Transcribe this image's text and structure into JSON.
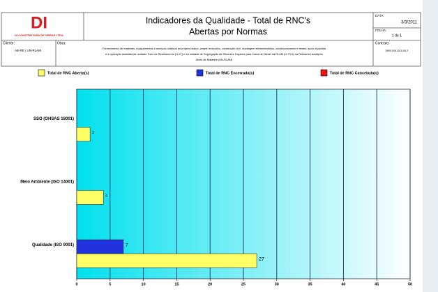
{
  "header": {
    "logo": "DI",
    "company": "DI CONSTRUTORA DE OBRAS LTDA",
    "title_lines": [
      "Indicadores da Qualidade - Total de RNC's",
      "Abertas por Normas"
    ],
    "date_label": "DATA:",
    "date": "3/3/2011",
    "sheet_label": "FOLHA:",
    "sheet": "1 de 1",
    "client_label": "Cliente:",
    "client": "AB-RE / UN-RLAM",
    "work_label": "Obra:",
    "work_lines": [
      "Fornecimento de materiais, equipamentos e serviços relativos ao projeto básico, projeto executivo, construção civil, montagem eletromecânica, condicionamento e testes, apoio à partida",
      "e à operação assistida da unidade Torre de Resfriamento (U-57) e da unidade de Segregação de Efluentes Líquidos para Caixa de Diesel da RLAM (U-73 A) na Refinaria Landulpho",
      "Alves de Mataripe (UN-RLAM)"
    ],
    "contract_label": "Contrato:",
    "contract": "0800.0041315.00.2"
  },
  "chart_data": {
    "type": "barh",
    "categories": [
      "SSO (OHSAS 18001)",
      "Meio Ambiente (ISO 14001)",
      "Qualidade (ISO 9001)"
    ],
    "series": [
      {
        "name": "Total de RNC Aberta(s)",
        "color": "#ffff66",
        "values": [
          2,
          4,
          27
        ]
      },
      {
        "name": "Total de RNC Encerrada(s)",
        "color": "#2233dd",
        "values": [
          null,
          null,
          7
        ]
      },
      {
        "name": "Total de RNC Cancelada(s)",
        "color": "#ee1111",
        "values": [
          null,
          null,
          null
        ]
      }
    ],
    "xlim": [
      0,
      50
    ],
    "xticks": [
      0,
      5,
      10,
      15,
      20,
      25,
      30,
      35,
      40,
      45,
      50
    ],
    "grid": true
  }
}
